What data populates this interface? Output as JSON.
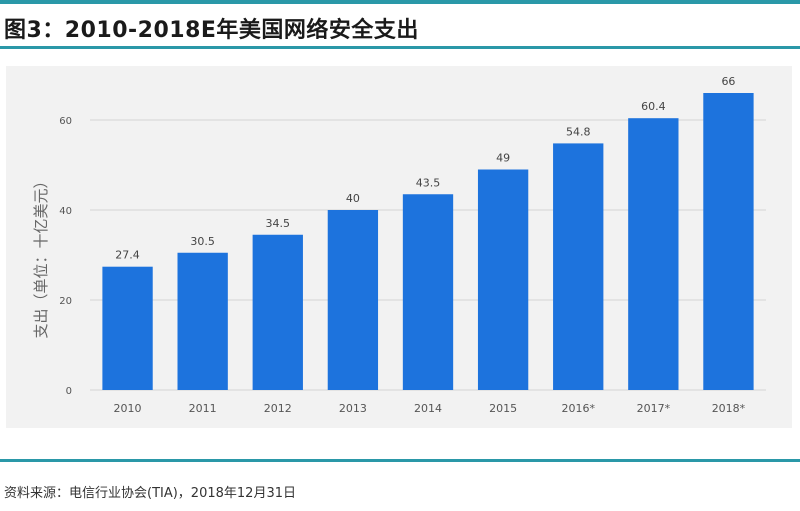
{
  "figure": {
    "title": "图3：2010-2018E年美国网络安全支出",
    "source": "资料来源：电信行业协会(TIA)，2018年12月31日"
  },
  "colors": {
    "accent_rule": "#2a98a8",
    "bar": "#1d73dd",
    "panel_bg": "#f2f2f2",
    "grid": "#d4d4d4"
  },
  "chart_data": {
    "type": "bar",
    "ylabel": "支出（单位：十亿美元）",
    "xlabel": "",
    "categories": [
      "2010",
      "2011",
      "2012",
      "2013",
      "2014",
      "2015",
      "2016*",
      "2017*",
      "2018*"
    ],
    "values": [
      27.4,
      30.5,
      34.5,
      40,
      43.5,
      49,
      54.8,
      60.4,
      66
    ],
    "value_labels": [
      "27.4",
      "30.5",
      "34.5",
      "40",
      "43.5",
      "49",
      "54.8",
      "60.4",
      "66"
    ],
    "yticks": [
      0,
      20,
      40,
      60
    ],
    "ylim": [
      0,
      66
    ],
    "grid": true,
    "legend": "none"
  }
}
